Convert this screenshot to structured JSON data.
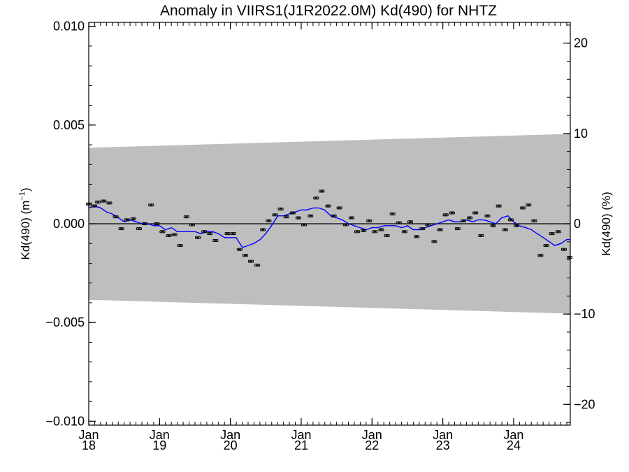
{
  "chart_data": {
    "type": "scatter",
    "title": "Anomaly in VIIRS1(J1R2022.0M) Kd(490) for NHTZ",
    "ylabel": "Kd(490) (m",
    "ylabel_sup": "−1",
    "ylabel_close": ")",
    "y2label": "Kd(490) (%)",
    "xlim": [
      2018.0,
      2024.8
    ],
    "ylim": [
      -0.0102,
      0.0102
    ],
    "y2lim": [
      -22.3,
      22.3
    ],
    "yticks": [
      -0.01,
      -0.005,
      0.0,
      0.005,
      0.01
    ],
    "ytick_labels": [
      "−0.010",
      "−0.005",
      "0.000",
      "0.005",
      "0.010"
    ],
    "y2ticks": [
      -20,
      -10,
      0,
      10,
      20
    ],
    "y2tick_labels": [
      "−20",
      "−10",
      "0",
      "10",
      "20"
    ],
    "xticks": [
      2018,
      2019,
      2020,
      2021,
      2022,
      2023,
      2024
    ],
    "xtick_labels": [
      [
        "Jan",
        "18"
      ],
      [
        "Jan",
        "19"
      ],
      [
        "Jan",
        "20"
      ],
      [
        "Jan",
        "21"
      ],
      [
        "Jan",
        "22"
      ],
      [
        "Jan",
        "23"
      ],
      [
        "Jan",
        "24"
      ]
    ],
    "band_color": "#bebebe",
    "band_upper": {
      "x": [
        2018.0,
        2024.8
      ],
      "y": [
        0.00385,
        0.00455
      ]
    },
    "band_lower": {
      "x": [
        2018.0,
        2024.8
      ],
      "y": [
        -0.00385,
        -0.00455
      ]
    },
    "zero_line": 0,
    "series": [
      {
        "type": "points_errorbar",
        "color": "#000000",
        "x": [
          2018.0,
          2018.08,
          2018.13,
          2018.21,
          2018.29,
          2018.38,
          2018.46,
          2018.54,
          2018.63,
          2018.71,
          2018.79,
          2018.88,
          2018.96,
          2019.04,
          2019.13,
          2019.21,
          2019.29,
          2019.38,
          2019.46,
          2019.54,
          2019.63,
          2019.71,
          2019.79,
          2019.96,
          2020.04,
          2020.13,
          2020.21,
          2020.29,
          2020.38,
          2020.46,
          2020.54,
          2020.63,
          2020.71,
          2020.79,
          2020.88,
          2020.96,
          2021.04,
          2021.13,
          2021.21,
          2021.29,
          2021.38,
          2021.46,
          2021.54,
          2021.63,
          2021.71,
          2021.79,
          2021.88,
          2021.96,
          2022.04,
          2022.13,
          2022.21,
          2022.29,
          2022.38,
          2022.46,
          2022.54,
          2022.63,
          2022.71,
          2022.79,
          2022.88,
          2022.96,
          2023.04,
          2023.13,
          2023.21,
          2023.29,
          2023.38,
          2023.46,
          2023.54,
          2023.63,
          2023.71,
          2023.79,
          2023.88,
          2023.96,
          2024.04,
          2024.13,
          2024.21,
          2024.29,
          2024.38,
          2024.46,
          2024.54,
          2024.63,
          2024.71,
          2024.79
        ],
        "y": [
          0.001,
          0.0009,
          0.0011,
          0.00115,
          0.00105,
          0.00035,
          -0.00025,
          0.0002,
          0.00025,
          -0.00025,
          0.0,
          0.00095,
          0.0,
          -0.0004,
          -0.0006,
          -0.00055,
          -0.0011,
          0.00035,
          -5e-05,
          -0.0007,
          -0.0004,
          -0.0005,
          -0.00085,
          -0.0005,
          -0.0005,
          -0.0013,
          -0.0016,
          -0.0019,
          -0.0021,
          -0.0003,
          0.00015,
          0.00045,
          0.00075,
          0.00035,
          0.00055,
          0.0003,
          -5e-05,
          0.0004,
          0.0013,
          0.00165,
          0.0009,
          0.0004,
          0.0008,
          -5e-05,
          0.0003,
          -0.0004,
          -0.00035,
          0.00015,
          -0.0004,
          -0.0003,
          -0.0006,
          0.0005,
          5e-05,
          -0.0004,
          0.0001,
          -0.00065,
          -0.00025,
          -5e-05,
          -0.0009,
          -0.0003,
          0.00045,
          0.00055,
          -0.00025,
          0.00015,
          0.0003,
          0.00055,
          -0.0006,
          0.0004,
          -0.0001,
          0.0009,
          -0.0003,
          0.0002,
          -0.0001,
          0.0008,
          0.00095,
          0.00015,
          -0.0016,
          -0.0011,
          -0.0005,
          -0.0004,
          -0.0013,
          -0.0017
        ]
      },
      {
        "type": "line",
        "color": "#0000ff",
        "x": [
          2018.0,
          2018.08,
          2018.17,
          2018.25,
          2018.33,
          2018.42,
          2018.5,
          2018.58,
          2018.67,
          2018.75,
          2018.83,
          2018.92,
          2019.0,
          2019.08,
          2019.17,
          2019.25,
          2019.33,
          2019.42,
          2019.5,
          2019.58,
          2019.67,
          2019.75,
          2019.83,
          2019.92,
          2020.0,
          2020.08,
          2020.17,
          2020.25,
          2020.33,
          2020.42,
          2020.5,
          2020.58,
          2020.67,
          2020.75,
          2020.83,
          2020.92,
          2021.0,
          2021.08,
          2021.17,
          2021.25,
          2021.33,
          2021.42,
          2021.5,
          2021.58,
          2021.67,
          2021.75,
          2021.83,
          2021.92,
          2022.0,
          2022.08,
          2022.17,
          2022.25,
          2022.33,
          2022.42,
          2022.5,
          2022.58,
          2022.67,
          2022.75,
          2022.83,
          2022.92,
          2023.0,
          2023.08,
          2023.17,
          2023.25,
          2023.33,
          2023.42,
          2023.5,
          2023.58,
          2023.67,
          2023.75,
          2023.83,
          2023.92,
          2024.0,
          2024.08,
          2024.17,
          2024.25,
          2024.33,
          2024.42,
          2024.5,
          2024.58,
          2024.67,
          2024.75,
          2024.8
        ],
        "y": [
          0.0008,
          0.0009,
          0.0008,
          0.0006,
          0.0005,
          0.0003,
          0.0001,
          0.0002,
          0.0001,
          0.0,
          0.0,
          -0.0001,
          -0.0001,
          -0.0003,
          -0.0002,
          -0.0004,
          -0.0004,
          -0.0004,
          -0.0004,
          -0.0005,
          -0.0004,
          -0.0004,
          -0.0005,
          -0.0007,
          -0.0007,
          -0.0007,
          -0.0012,
          -0.0011,
          -0.001,
          -0.0008,
          -0.0005,
          -0.0001,
          0.0004,
          0.0004,
          0.0005,
          0.0006,
          0.0007,
          0.0007,
          0.0008,
          0.0008,
          0.0007,
          0.0004,
          0.0003,
          0.0002,
          0.0,
          -0.0001,
          -0.0002,
          -0.0003,
          -0.0002,
          -0.0002,
          -0.0001,
          -0.0001,
          -0.0001,
          -0.0002,
          -0.0001,
          -0.0003,
          -0.0003,
          -0.0002,
          -0.0001,
          0.0,
          0.0001,
          0.0002,
          0.0001,
          0.0001,
          0.0002,
          0.0001,
          0.0002,
          0.0002,
          0.0001,
          0.0,
          0.0003,
          0.0004,
          0.0001,
          -0.0001,
          -0.0002,
          -0.0003,
          -0.0005,
          -0.0007,
          -0.0009,
          -0.0011,
          -0.001,
          -0.0008,
          -0.0008
        ]
      }
    ]
  }
}
